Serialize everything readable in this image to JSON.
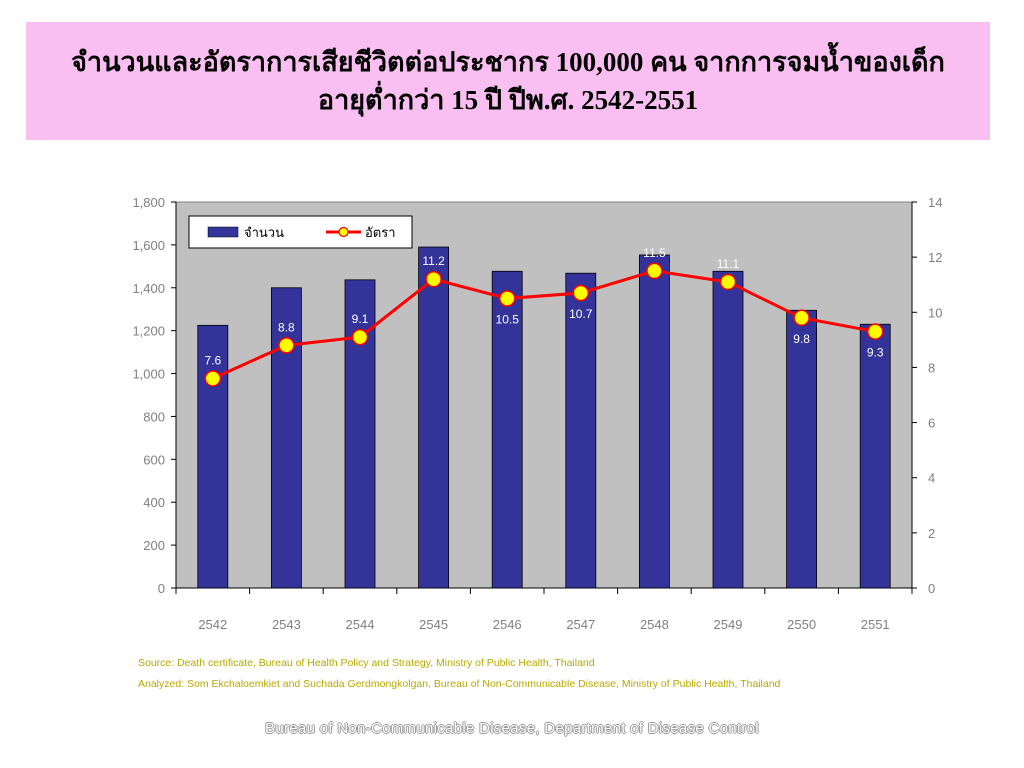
{
  "title": {
    "line1": "จำนวนและอัตราการเสียชีวิตต่อประชากร 100,000 คน จากการจมน้ำของเด็ก",
    "line2": "อายุต่ำกว่า 15 ปี ปีพ.ศ. 2542-2551"
  },
  "chart_data": {
    "type": "bar",
    "categories": [
      "2542",
      "2543",
      "2544",
      "2545",
      "2546",
      "2547",
      "2548",
      "2549",
      "2550",
      "2551"
    ],
    "series": [
      {
        "name": "จำนวน",
        "kind": "bar",
        "axis": "left",
        "color": "#333399",
        "values": [
          1225,
          1400,
          1437,
          1590,
          1477,
          1468,
          1553,
          1477,
          1295,
          1230
        ]
      },
      {
        "name": "อัตรา",
        "kind": "line",
        "axis": "right",
        "color": "#ff0000",
        "marker_color": "#ffff00",
        "values": [
          7.6,
          8.8,
          9.1,
          11.2,
          10.5,
          10.7,
          11.5,
          11.1,
          9.8,
          9.3
        ]
      }
    ],
    "data_labels": [
      "7.6",
      "8.8",
      "9.1",
      "11.2",
      "10.5",
      "10.7",
      "11.5",
      "11.1",
      "9.8",
      "9.3"
    ],
    "ylim_left": [
      0,
      1800
    ],
    "yticks_left": [
      "0",
      "200",
      "400",
      "600",
      "800",
      "1,000",
      "1,200",
      "1,400",
      "1,600",
      "1,800"
    ],
    "ylim_right": [
      0,
      14
    ],
    "yticks_right": [
      "0",
      "2",
      "4",
      "6",
      "8",
      "10",
      "12",
      "14"
    ],
    "legend_position": "top-left",
    "plot_background": "#c0c0c0",
    "grid": false
  },
  "source": {
    "line1": "Source:  Death certificate, Bureau of Health Policy and Strategy, Ministry of Public Health, Thailand",
    "line2": "Analyzed: Som Ekchaloemkiet and Suchada Gerdmongkolgan, Bureau of Non-Communicable Disease, Ministry of Public Health, Thailand"
  },
  "footer": "Bureau of Non-Communicable Disease, Department of Disease Control"
}
